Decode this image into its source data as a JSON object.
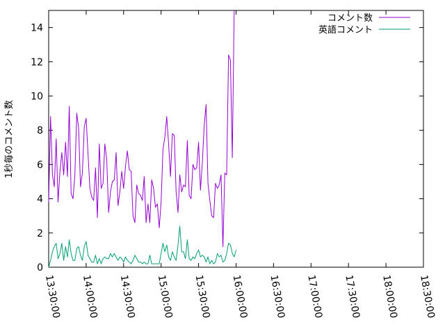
{
  "chart_data": {
    "type": "line",
    "ylabel": "1秒毎のコメント数",
    "ylim": [
      0,
      15
    ],
    "y_ticks": [
      0,
      2,
      4,
      6,
      8,
      10,
      12,
      14
    ],
    "y_tick_labels": [
      "0",
      "2",
      "4",
      "6",
      "8",
      "10",
      "12",
      "14"
    ],
    "x_ticks": [
      "13:30:00",
      "14:00:00",
      "14:30:00",
      "15:00:00",
      "15:30:00",
      "16:00:00",
      "16:30:00",
      "17:00:00",
      "17:30:00",
      "18:00:00",
      "18:30:00"
    ],
    "grid": false,
    "legend_position": "top-right",
    "series": [
      {
        "name": "コメント数",
        "color": "#9400d3",
        "points": [
          [
            "13:30:00",
            3.8
          ],
          [
            "13:31:30",
            8.8
          ],
          [
            "13:33:00",
            5.4
          ],
          [
            "13:34:30",
            4.7
          ],
          [
            "13:36:00",
            7.5
          ],
          [
            "13:37:30",
            3.8
          ],
          [
            "13:39:00",
            5.6
          ],
          [
            "13:40:30",
            6.7
          ],
          [
            "13:42:00",
            5.4
          ],
          [
            "13:43:30",
            7.3
          ],
          [
            "13:45:00",
            5.3
          ],
          [
            "13:46:30",
            9.4
          ],
          [
            "13:48:00",
            4.3
          ],
          [
            "13:49:30",
            4.0
          ],
          [
            "13:51:00",
            5.4
          ],
          [
            "13:52:30",
            9.0
          ],
          [
            "13:54:00",
            8.1
          ],
          [
            "13:55:30",
            4.7
          ],
          [
            "13:57:00",
            5.5
          ],
          [
            "13:58:30",
            8.2
          ],
          [
            "14:00:00",
            8.7
          ],
          [
            "14:01:30",
            6.6
          ],
          [
            "14:03:00",
            4.6
          ],
          [
            "14:04:30",
            4.1
          ],
          [
            "14:06:00",
            3.9
          ],
          [
            "14:07:30",
            5.8
          ],
          [
            "14:09:00",
            2.9
          ],
          [
            "14:10:30",
            7.2
          ],
          [
            "14:12:00",
            4.6
          ],
          [
            "14:13:30",
            4.9
          ],
          [
            "14:15:00",
            7.2
          ],
          [
            "14:16:30",
            6.3
          ],
          [
            "14:18:00",
            3.2
          ],
          [
            "14:19:30",
            4.4
          ],
          [
            "14:21:00",
            5.0
          ],
          [
            "14:22:30",
            5.1
          ],
          [
            "14:24:00",
            6.7
          ],
          [
            "14:25:30",
            3.6
          ],
          [
            "14:27:00",
            4.4
          ],
          [
            "14:28:30",
            5.6
          ],
          [
            "14:30:00",
            4.6
          ],
          [
            "14:31:30",
            5.9
          ],
          [
            "14:33:00",
            6.8
          ],
          [
            "14:34:30",
            5.7
          ],
          [
            "14:36:00",
            5.6
          ],
          [
            "14:37:30",
            3.0
          ],
          [
            "14:39:00",
            2.6
          ],
          [
            "14:40:30",
            4.8
          ],
          [
            "14:42:00",
            4.3
          ],
          [
            "14:43:30",
            4.2
          ],
          [
            "14:45:00",
            3.9
          ],
          [
            "14:46:30",
            5.3
          ],
          [
            "14:48:00",
            2.6
          ],
          [
            "14:49:30",
            3.7
          ],
          [
            "14:51:00",
            2.6
          ],
          [
            "14:52:30",
            5.1
          ],
          [
            "14:54:00",
            4.6
          ],
          [
            "14:55:30",
            3.5
          ],
          [
            "14:57:00",
            3.7
          ],
          [
            "14:58:30",
            2.3
          ],
          [
            "15:00:00",
            3.8
          ],
          [
            "15:01:30",
            6.9
          ],
          [
            "15:03:00",
            7.6
          ],
          [
            "15:04:30",
            8.8
          ],
          [
            "15:06:00",
            7.2
          ],
          [
            "15:07:30",
            5.3
          ],
          [
            "15:09:00",
            7.8
          ],
          [
            "15:10:30",
            7.7
          ],
          [
            "15:12:00",
            4.4
          ],
          [
            "15:13:30",
            3.2
          ],
          [
            "15:15:00",
            5.4
          ],
          [
            "15:16:30",
            4.4
          ],
          [
            "15:18:00",
            4.8
          ],
          [
            "15:19:30",
            4.7
          ],
          [
            "15:21:00",
            7.4
          ],
          [
            "15:22:30",
            4.2
          ],
          [
            "15:24:00",
            4.0
          ],
          [
            "15:25:30",
            6.0
          ],
          [
            "15:27:00",
            5.7
          ],
          [
            "15:28:30",
            5.8
          ],
          [
            "15:30:00",
            7.3
          ],
          [
            "15:31:30",
            4.5
          ],
          [
            "15:33:00",
            6.1
          ],
          [
            "15:34:30",
            8.3
          ],
          [
            "15:36:00",
            9.5
          ],
          [
            "15:37:30",
            4.9
          ],
          [
            "15:39:00",
            3.9
          ],
          [
            "15:40:30",
            3.0
          ],
          [
            "15:42:00",
            2.9
          ],
          [
            "15:43:30",
            4.9
          ],
          [
            "15:45:00",
            4.6
          ],
          [
            "15:46:30",
            4.8
          ],
          [
            "15:48:00",
            5.4
          ],
          [
            "15:49:30",
            1.2
          ],
          [
            "15:51:00",
            5.5
          ],
          [
            "15:52:30",
            5.4
          ],
          [
            "15:54:00",
            12.4
          ],
          [
            "15:55:30",
            12.1
          ],
          [
            "15:57:00",
            6.4
          ],
          [
            "15:58:30",
            15.0
          ]
        ]
      },
      {
        "name": "英語コメント",
        "color": "#009e73",
        "points": [
          [
            "13:30:00",
            0.0
          ],
          [
            "13:31:30",
            0.4
          ],
          [
            "13:33:00",
            0.9
          ],
          [
            "13:34:30",
            1.2
          ],
          [
            "13:36:00",
            1.4
          ],
          [
            "13:37:30",
            0.5
          ],
          [
            "13:39:00",
            0.8
          ],
          [
            "13:40:30",
            1.4
          ],
          [
            "13:42:00",
            0.4
          ],
          [
            "13:43:30",
            1.2
          ],
          [
            "13:45:00",
            0.6
          ],
          [
            "13:46:30",
            1.6
          ],
          [
            "13:48:00",
            0.8
          ],
          [
            "13:49:30",
            0.4
          ],
          [
            "13:51:00",
            0.4
          ],
          [
            "13:52:30",
            1.1
          ],
          [
            "13:54:00",
            1.2
          ],
          [
            "13:55:30",
            0.7
          ],
          [
            "13:57:00",
            0.4
          ],
          [
            "13:58:30",
            1.2
          ],
          [
            "14:00:00",
            1.5
          ],
          [
            "14:01:30",
            0.7
          ],
          [
            "14:03:00",
            0.5
          ],
          [
            "14:04:30",
            0.3
          ],
          [
            "14:06:00",
            0.3
          ],
          [
            "14:07:30",
            0.7
          ],
          [
            "14:09:00",
            0.2
          ],
          [
            "14:10:30",
            0.5
          ],
          [
            "14:12:00",
            0.2
          ],
          [
            "14:13:30",
            0.5
          ],
          [
            "14:15:00",
            0.6
          ],
          [
            "14:16:30",
            0.5
          ],
          [
            "14:18:00",
            0.5
          ],
          [
            "14:19:30",
            0.8
          ],
          [
            "14:21:00",
            0.6
          ],
          [
            "14:22:30",
            0.8
          ],
          [
            "14:24:00",
            0.6
          ],
          [
            "14:25:30",
            0.4
          ],
          [
            "14:27:00",
            0.6
          ],
          [
            "14:28:30",
            0.5
          ],
          [
            "14:30:00",
            0.3
          ],
          [
            "14:31:30",
            0.6
          ],
          [
            "14:33:00",
            0.4
          ],
          [
            "14:34:30",
            0.3
          ],
          [
            "14:36:00",
            0.2
          ],
          [
            "14:37:30",
            0.4
          ],
          [
            "14:39:00",
            0.7
          ],
          [
            "14:40:30",
            0.5
          ],
          [
            "14:42:00",
            0.3
          ],
          [
            "14:43:30",
            0.3
          ],
          [
            "14:45:00",
            0.2
          ],
          [
            "14:46:30",
            0.3
          ],
          [
            "14:48:00",
            0.2
          ],
          [
            "14:49:30",
            0.2
          ],
          [
            "14:51:00",
            0.7
          ],
          [
            "14:52:30",
            0.2
          ],
          [
            "14:54:00",
            0.2
          ],
          [
            "14:55:30",
            0.2
          ],
          [
            "14:57:00",
            0.2
          ],
          [
            "14:58:30",
            0.2
          ],
          [
            "15:00:00",
            0.8
          ],
          [
            "15:01:30",
            1.4
          ],
          [
            "15:03:00",
            0.9
          ],
          [
            "15:04:30",
            1.3
          ],
          [
            "15:06:00",
            0.6
          ],
          [
            "15:07:30",
            0.4
          ],
          [
            "15:09:00",
            0.9
          ],
          [
            "15:10:30",
            0.6
          ],
          [
            "15:12:00",
            0.4
          ],
          [
            "15:13:30",
            1.3
          ],
          [
            "15:15:00",
            2.4
          ],
          [
            "15:16:30",
            0.9
          ],
          [
            "15:18:00",
            0.9
          ],
          [
            "15:19:30",
            0.5
          ],
          [
            "15:21:00",
            1.6
          ],
          [
            "15:22:30",
            0.5
          ],
          [
            "15:24:00",
            0.4
          ],
          [
            "15:25:30",
            0.6
          ],
          [
            "15:27:00",
            0.5
          ],
          [
            "15:28:30",
            0.8
          ],
          [
            "15:30:00",
            1.0
          ],
          [
            "15:31:30",
            0.6
          ],
          [
            "15:33:00",
            0.7
          ],
          [
            "15:34:30",
            0.6
          ],
          [
            "15:36:00",
            0.3
          ],
          [
            "15:37:30",
            0.6
          ],
          [
            "15:39:00",
            0.2
          ],
          [
            "15:40:30",
            0.4
          ],
          [
            "15:42:00",
            0.2
          ],
          [
            "15:43:30",
            0.3
          ],
          [
            "15:45:00",
            0.8
          ],
          [
            "15:46:30",
            0.6
          ],
          [
            "15:48:00",
            0.7
          ],
          [
            "15:49:30",
            0.3
          ],
          [
            "15:51:00",
            0.4
          ],
          [
            "15:52:30",
            0.8
          ],
          [
            "15:54:00",
            1.4
          ],
          [
            "15:55:30",
            1.3
          ],
          [
            "15:57:00",
            0.8
          ],
          [
            "15:58:30",
            0.6
          ],
          [
            "16:00:00",
            1.0
          ]
        ]
      }
    ]
  }
}
